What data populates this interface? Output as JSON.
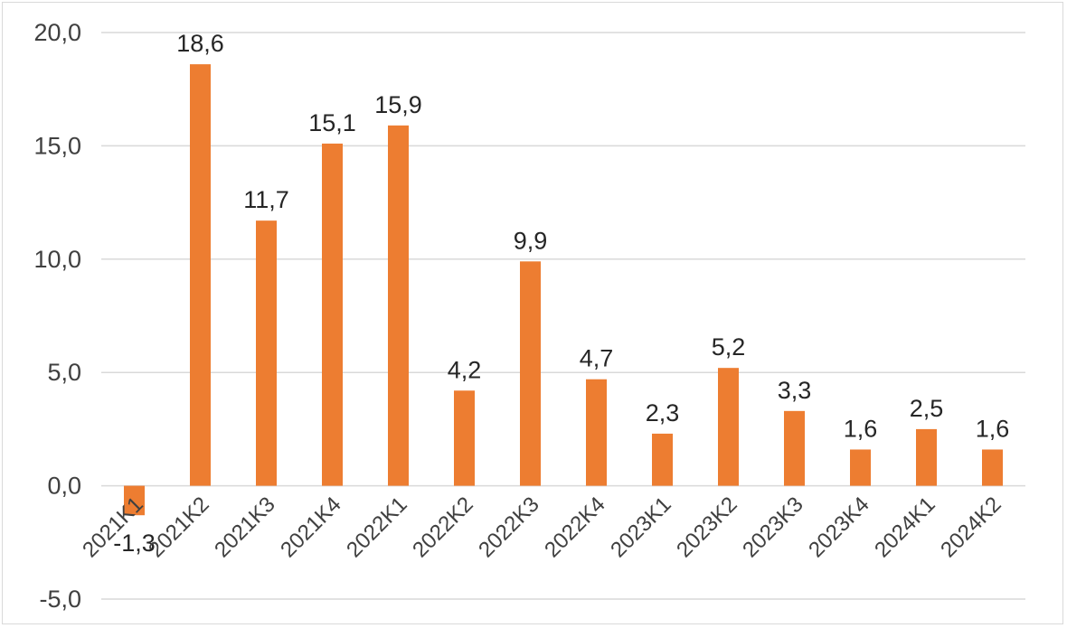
{
  "chart_data": {
    "type": "bar",
    "categories": [
      "2021K1",
      "2021K2",
      "2021K3",
      "2021K4",
      "2022K1",
      "2022K2",
      "2022K3",
      "2022K4",
      "2023K1",
      "2023K2",
      "2023K3",
      "2023K4",
      "2024K1",
      "2024K2"
    ],
    "values": [
      -1.3,
      18.6,
      11.7,
      15.1,
      15.9,
      4.2,
      9.9,
      4.7,
      2.3,
      5.2,
      3.3,
      1.6,
      2.5,
      1.6
    ],
    "data_labels": [
      "-1,3",
      "18,6",
      "11,7",
      "15,1",
      "15,9",
      "4,2",
      "9,9",
      "4,7",
      "2,3",
      "5,2",
      "3,3",
      "1,6",
      "2,5",
      "1,6"
    ],
    "yticks": [
      20,
      15,
      10,
      5,
      0,
      -5
    ],
    "ytick_labels": [
      "20,0",
      "15,0",
      "10,0",
      "5,0",
      "0,0",
      "-5,0"
    ],
    "ylim": [
      -5,
      20
    ],
    "grid": true,
    "colors": {
      "bar": "#ED7D31",
      "grid": "#d9d9d9"
    }
  }
}
